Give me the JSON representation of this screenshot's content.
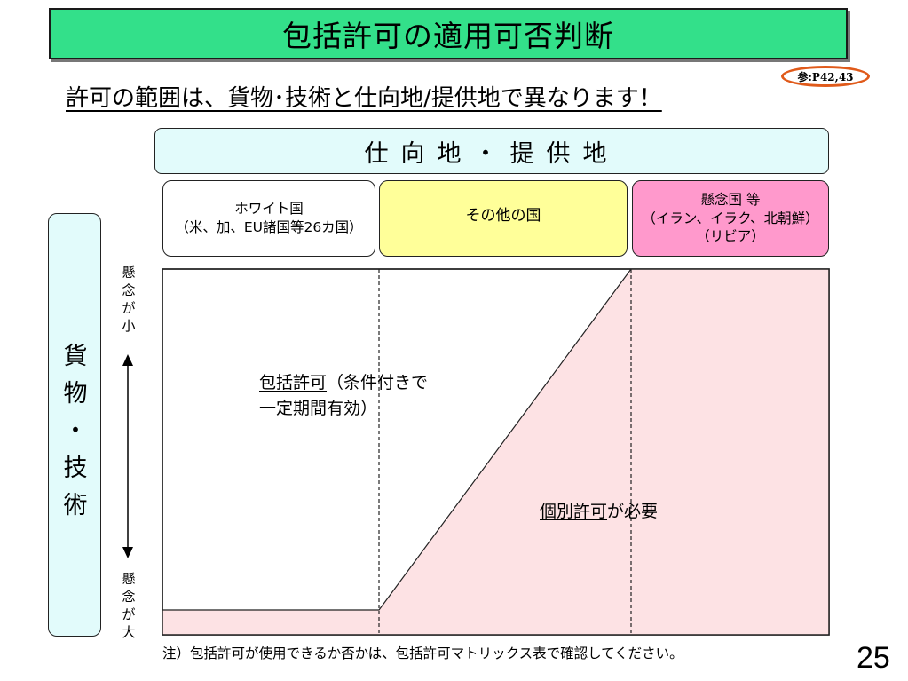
{
  "slide": {
    "title": "包括許可の適用可否判断",
    "reference": "参:P42,43",
    "subtitle": "許可の範囲は、貨物･技術と仕向地/提供地で異なります！",
    "page_number": "25"
  },
  "destination": {
    "header": "仕向地・提供地",
    "columns": [
      {
        "line1": "ホワイト国",
        "line2": "（米、加、EU諸国等26カ国）",
        "line3": ""
      },
      {
        "line1": "その他の国",
        "line2": "",
        "line3": ""
      },
      {
        "line1": "懸念国 等",
        "line2": "（イラン、イラク、北朝鮮）",
        "line3": "（リビア）"
      }
    ]
  },
  "goods": {
    "label": "貨物・技術",
    "axis_top": "懸念が小",
    "axis_bottom": "懸念が大"
  },
  "regions": {
    "bulk_label": "包括許可",
    "bulk_note_a": "（条件付きで",
    "bulk_note_b": "一定期間有効）",
    "individual_label": "個別許可",
    "individual_suffix": "が必要"
  },
  "footnote": "注）包括許可が使用できるか否かは、包括許可マトリックス表で確認してください。",
  "colors": {
    "title_bg": "#33e08a",
    "header_bg": "#e2fbfb",
    "white_country_bg": "#ffffff",
    "other_country_bg": "#ffff99",
    "concern_country_bg": "#ff99cc",
    "individual_region_fill": "#fde2e4",
    "reference_ring": "#e05a1a"
  }
}
